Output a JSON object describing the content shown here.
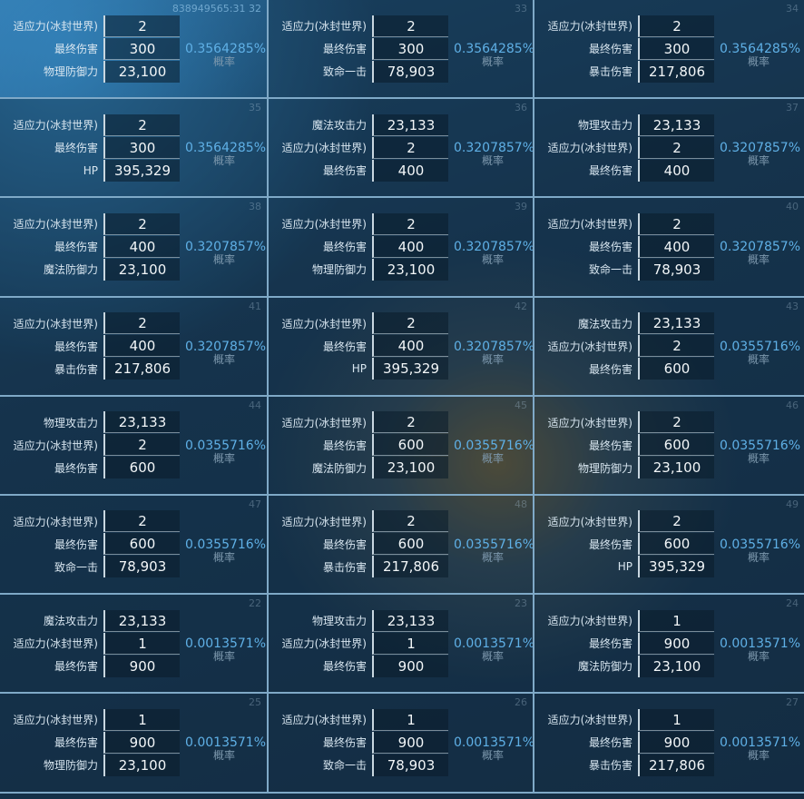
{
  "probability_label": "概率",
  "colors": {
    "probability": "#5fb0e6",
    "border": "#7fa9c7"
  },
  "cells": [
    {
      "id": "838949565:31 32",
      "highlight": true,
      "strong_id": true,
      "probability": "0.3564285%",
      "stats": [
        {
          "label": "适应力(冰封世界)",
          "value": "2"
        },
        {
          "label": "最终伤害",
          "value": "300"
        },
        {
          "label": "物理防御力",
          "value": "23,100"
        }
      ]
    },
    {
      "id": "33",
      "probability": "0.3564285%",
      "stats": [
        {
          "label": "适应力(冰封世界)",
          "value": "2"
        },
        {
          "label": "最终伤害",
          "value": "300"
        },
        {
          "label": "致命一击",
          "value": "78,903"
        }
      ]
    },
    {
      "id": "34",
      "probability": "0.3564285%",
      "stats": [
        {
          "label": "适应力(冰封世界)",
          "value": "2"
        },
        {
          "label": "最终伤害",
          "value": "300"
        },
        {
          "label": "暴击伤害",
          "value": "217,806"
        }
      ]
    },
    {
      "id": "35",
      "probability": "0.3564285%",
      "stats": [
        {
          "label": "适应力(冰封世界)",
          "value": "2"
        },
        {
          "label": "最终伤害",
          "value": "300"
        },
        {
          "label": "HP",
          "value": "395,329"
        }
      ]
    },
    {
      "id": "36",
      "probability": "0.3207857%",
      "stats": [
        {
          "label": "魔法攻击力",
          "value": "23,133"
        },
        {
          "label": "适应力(冰封世界)",
          "value": "2"
        },
        {
          "label": "最终伤害",
          "value": "400"
        }
      ]
    },
    {
      "id": "37",
      "probability": "0.3207857%",
      "stats": [
        {
          "label": "物理攻击力",
          "value": "23,133"
        },
        {
          "label": "适应力(冰封世界)",
          "value": "2"
        },
        {
          "label": "最终伤害",
          "value": "400"
        }
      ]
    },
    {
      "id": "38",
      "probability": "0.3207857%",
      "stats": [
        {
          "label": "适应力(冰封世界)",
          "value": "2"
        },
        {
          "label": "最终伤害",
          "value": "400"
        },
        {
          "label": "魔法防御力",
          "value": "23,100"
        }
      ]
    },
    {
      "id": "39",
      "probability": "0.3207857%",
      "stats": [
        {
          "label": "适应力(冰封世界)",
          "value": "2"
        },
        {
          "label": "最终伤害",
          "value": "400"
        },
        {
          "label": "物理防御力",
          "value": "23,100"
        }
      ]
    },
    {
      "id": "40",
      "probability": "0.3207857%",
      "stats": [
        {
          "label": "适应力(冰封世界)",
          "value": "2"
        },
        {
          "label": "最终伤害",
          "value": "400"
        },
        {
          "label": "致命一击",
          "value": "78,903"
        }
      ]
    },
    {
      "id": "41",
      "probability": "0.3207857%",
      "stats": [
        {
          "label": "适应力(冰封世界)",
          "value": "2"
        },
        {
          "label": "最终伤害",
          "value": "400"
        },
        {
          "label": "暴击伤害",
          "value": "217,806"
        }
      ]
    },
    {
      "id": "42",
      "probability": "0.3207857%",
      "stats": [
        {
          "label": "适应力(冰封世界)",
          "value": "2"
        },
        {
          "label": "最终伤害",
          "value": "400"
        },
        {
          "label": "HP",
          "value": "395,329"
        }
      ]
    },
    {
      "id": "43",
      "probability": "0.0355716%",
      "stats": [
        {
          "label": "魔法攻击力",
          "value": "23,133"
        },
        {
          "label": "适应力(冰封世界)",
          "value": "2"
        },
        {
          "label": "最终伤害",
          "value": "600"
        }
      ]
    },
    {
      "id": "44",
      "probability": "0.0355716%",
      "stats": [
        {
          "label": "物理攻击力",
          "value": "23,133"
        },
        {
          "label": "适应力(冰封世界)",
          "value": "2"
        },
        {
          "label": "最终伤害",
          "value": "600"
        }
      ]
    },
    {
      "id": "45",
      "probability": "0.0355716%",
      "stats": [
        {
          "label": "适应力(冰封世界)",
          "value": "2"
        },
        {
          "label": "最终伤害",
          "value": "600"
        },
        {
          "label": "魔法防御力",
          "value": "23,100"
        }
      ]
    },
    {
      "id": "46",
      "probability": "0.0355716%",
      "stats": [
        {
          "label": "适应力(冰封世界)",
          "value": "2"
        },
        {
          "label": "最终伤害",
          "value": "600"
        },
        {
          "label": "物理防御力",
          "value": "23,100"
        }
      ]
    },
    {
      "id": "47",
      "probability": "0.0355716%",
      "stats": [
        {
          "label": "适应力(冰封世界)",
          "value": "2"
        },
        {
          "label": "最终伤害",
          "value": "600"
        },
        {
          "label": "致命一击",
          "value": "78,903"
        }
      ]
    },
    {
      "id": "48",
      "probability": "0.0355716%",
      "stats": [
        {
          "label": "适应力(冰封世界)",
          "value": "2"
        },
        {
          "label": "最终伤害",
          "value": "600"
        },
        {
          "label": "暴击伤害",
          "value": "217,806"
        }
      ]
    },
    {
      "id": "49",
      "probability": "0.0355716%",
      "stats": [
        {
          "label": "适应力(冰封世界)",
          "value": "2"
        },
        {
          "label": "最终伤害",
          "value": "600"
        },
        {
          "label": "HP",
          "value": "395,329"
        }
      ]
    },
    {
      "id": "22",
      "probability": "0.0013571%",
      "stats": [
        {
          "label": "魔法攻击力",
          "value": "23,133"
        },
        {
          "label": "适应力(冰封世界)",
          "value": "1"
        },
        {
          "label": "最终伤害",
          "value": "900"
        }
      ]
    },
    {
      "id": "23",
      "probability": "0.0013571%",
      "stats": [
        {
          "label": "物理攻击力",
          "value": "23,133"
        },
        {
          "label": "适应力(冰封世界)",
          "value": "1"
        },
        {
          "label": "最终伤害",
          "value": "900"
        }
      ]
    },
    {
      "id": "24",
      "probability": "0.0013571%",
      "stats": [
        {
          "label": "适应力(冰封世界)",
          "value": "1"
        },
        {
          "label": "最终伤害",
          "value": "900"
        },
        {
          "label": "魔法防御力",
          "value": "23,100"
        }
      ]
    },
    {
      "id": "25",
      "probability": "0.0013571%",
      "stats": [
        {
          "label": "适应力(冰封世界)",
          "value": "1"
        },
        {
          "label": "最终伤害",
          "value": "900"
        },
        {
          "label": "物理防御力",
          "value": "23,100"
        }
      ]
    },
    {
      "id": "26",
      "probability": "0.0013571%",
      "stats": [
        {
          "label": "适应力(冰封世界)",
          "value": "1"
        },
        {
          "label": "最终伤害",
          "value": "900"
        },
        {
          "label": "致命一击",
          "value": "78,903"
        }
      ]
    },
    {
      "id": "27",
      "probability": "0.0013571%",
      "stats": [
        {
          "label": "适应力(冰封世界)",
          "value": "1"
        },
        {
          "label": "最终伤害",
          "value": "900"
        },
        {
          "label": "暴击伤害",
          "value": "217,806"
        }
      ]
    }
  ]
}
